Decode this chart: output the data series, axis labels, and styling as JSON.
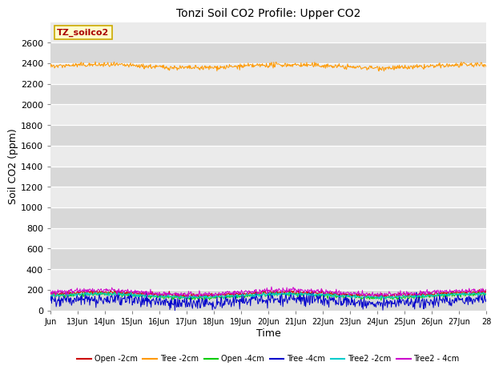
{
  "title": "Tonzi Soil CO2 Profile: Upper CO2",
  "xlabel": "Time",
  "ylabel": "Soil CO2 (ppm)",
  "ylim": [
    0,
    2800
  ],
  "yticks": [
    0,
    200,
    400,
    600,
    800,
    1000,
    1200,
    1400,
    1600,
    1800,
    2000,
    2200,
    2400,
    2600
  ],
  "x_start_day": 12,
  "x_end_day": 28,
  "xtick_days": [
    12,
    13,
    14,
    15,
    16,
    17,
    18,
    19,
    20,
    21,
    22,
    23,
    24,
    25,
    26,
    27,
    28
  ],
  "xtick_labels": [
    "Jun",
    "13Jun",
    "14Jun",
    "15Jun",
    "16Jun",
    "17Jun",
    "18Jun",
    "19Jun",
    "20Jun",
    "21Jun",
    "22Jun",
    "23Jun",
    "24Jun",
    "25Jun",
    "26Jun",
    "27Jun",
    "28"
  ],
  "bg_light": "#ebebeb",
  "bg_dark": "#d8d8d8",
  "series": {
    "Open_2cm": {
      "color": "#cc0000",
      "mean": 160,
      "amplitude": 18,
      "noise_std": 10
    },
    "Tree_2cm": {
      "color": "#ff9900",
      "mean": 2370,
      "amplitude": 15,
      "noise_std": 12
    },
    "Open_4cm": {
      "color": "#00cc00",
      "mean": 140,
      "amplitude": 18,
      "noise_std": 10
    },
    "Tree_4cm": {
      "color": "#0000cc",
      "mean": 90,
      "amplitude": 25,
      "noise_std": 20
    },
    "Tree2_2cm": {
      "color": "#00cccc",
      "mean": 145,
      "amplitude": 15,
      "noise_std": 8
    },
    "Tree2_4cm": {
      "color": "#cc00cc",
      "mean": 175,
      "amplitude": 20,
      "noise_std": 12
    }
  },
  "series_order": [
    "Open_2cm",
    "Tree_2cm",
    "Open_4cm",
    "Tree_4cm",
    "Tree2_2cm",
    "Tree2_4cm"
  ],
  "legend_labels": [
    "Open -2cm",
    "Tree -2cm",
    "Open -4cm",
    "Tree -4cm",
    "Tree2 -2cm",
    "Tree2 - 4cm"
  ],
  "legend_colors": [
    "#cc0000",
    "#ff9900",
    "#00cc00",
    "#0000cc",
    "#00cccc",
    "#cc00cc"
  ],
  "annotation_text": "TZ_soilco2",
  "annotation_bg": "#ffffcc",
  "annotation_border": "#ccaa00"
}
